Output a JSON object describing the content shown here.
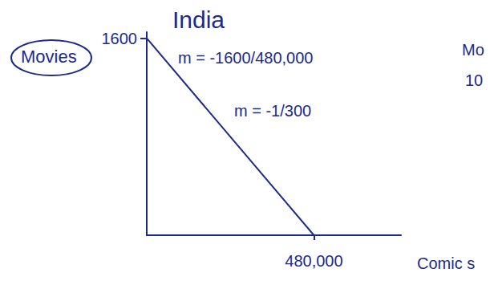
{
  "chart_data": {
    "type": "line",
    "title": "India",
    "x_label": "Comic s",
    "y_label": "Movies",
    "x": [
      0,
      480000
    ],
    "values": [
      1600,
      0
    ],
    "color": "#1c2a8c",
    "xlim": [
      0,
      730000
    ],
    "xticks": [
      {
        "value": 480000,
        "label": "480,000"
      }
    ],
    "ylim": [
      0,
      1650
    ],
    "yticks": [
      1600
    ],
    "grid": false,
    "annotations": [
      "m = -1600/480,000",
      "m = -1/300",
      "Mo",
      "10"
    ]
  }
}
